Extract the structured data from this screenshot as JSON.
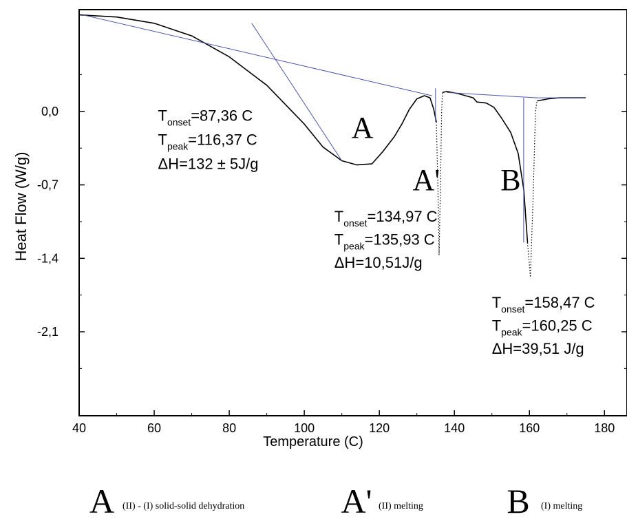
{
  "chart_data": {
    "type": "line",
    "xlabel": "Temperature (C)",
    "ylabel": "Heat Flow (W/g)",
    "xlim": [
      40,
      186
    ],
    "ylim": [
      -2.9,
      0.97
    ],
    "x_ticks": [
      40,
      60,
      80,
      100,
      120,
      140,
      160,
      180
    ],
    "x_tick_labels": [
      "40",
      "60",
      "80",
      "100",
      "120",
      "140",
      "160",
      "180"
    ],
    "y_ticks": [
      0.0,
      -0.7,
      -1.4,
      -2.1
    ],
    "y_tick_labels": [
      "0,0",
      "-0,7",
      "-1,4",
      "-2,1"
    ],
    "grid": false,
    "series": [
      {
        "style": "solid",
        "color": "#000000",
        "points": [
          [
            40,
            0.92
          ],
          [
            50,
            0.9
          ],
          [
            60,
            0.84
          ],
          [
            70,
            0.72
          ],
          [
            80,
            0.52
          ],
          [
            90,
            0.25
          ],
          [
            100,
            -0.12
          ],
          [
            105,
            -0.34
          ],
          [
            110,
            -0.47
          ],
          [
            114,
            -0.51
          ],
          [
            118,
            -0.5
          ],
          [
            121,
            -0.38
          ],
          [
            124,
            -0.24
          ],
          [
            126,
            -0.12
          ],
          [
            128,
            0.02
          ],
          [
            130,
            0.12
          ],
          [
            132,
            0.15
          ],
          [
            133.5,
            0.13
          ],
          [
            134.5,
            0.02
          ],
          [
            135.2,
            -0.1
          ]
        ]
      },
      {
        "style": "dotted",
        "color": "#000000",
        "points": [
          [
            135.2,
            -0.1
          ],
          [
            135.6,
            -0.7
          ],
          [
            135.93,
            -1.37
          ],
          [
            136.3,
            -0.7
          ],
          [
            136.6,
            0.0
          ],
          [
            136.8,
            0.18
          ]
        ]
      },
      {
        "style": "solid",
        "color": "#000000",
        "points": [
          [
            136.8,
            0.18
          ],
          [
            138,
            0.19
          ],
          [
            141,
            0.17
          ],
          [
            145,
            0.13
          ],
          [
            146,
            0.09
          ],
          [
            148.5,
            0.08
          ],
          [
            150.5,
            0.04
          ],
          [
            152.5,
            -0.06
          ],
          [
            155,
            -0.2
          ],
          [
            157,
            -0.4
          ],
          [
            158.5,
            -0.75
          ],
          [
            159.5,
            -1.25
          ]
        ]
      },
      {
        "style": "dotted",
        "color": "#000000",
        "points": [
          [
            159.5,
            -1.25
          ],
          [
            160.25,
            -1.58
          ],
          [
            161,
            -0.8
          ],
          [
            161.6,
            0.0
          ],
          [
            162,
            0.1
          ]
        ]
      },
      {
        "style": "solid",
        "color": "#000000",
        "points": [
          [
            162,
            0.1
          ],
          [
            165,
            0.12
          ],
          [
            168,
            0.13
          ],
          [
            172,
            0.13
          ],
          [
            175,
            0.13
          ]
        ]
      },
      {
        "style": "solid",
        "color": "#4a54a8",
        "points": [
          [
            41,
            0.92
          ],
          [
            134,
            0.15
          ]
        ]
      },
      {
        "style": "solid",
        "color": "#4a54a8",
        "points": [
          [
            86,
            0.84
          ],
          [
            110,
            -0.47
          ]
        ]
      },
      {
        "style": "solid",
        "color": "#4a54a8",
        "points": [
          [
            134.97,
            0.22
          ],
          [
            134.97,
            -0.1
          ]
        ]
      },
      {
        "style": "solid",
        "color": "#4a54a8",
        "points": [
          [
            138,
            0.18
          ],
          [
            162,
            0.13
          ]
        ]
      },
      {
        "style": "solid",
        "color": "#4a54a8",
        "points": [
          [
            158.47,
            0.13
          ],
          [
            158.47,
            -1.25
          ]
        ]
      },
      {
        "style": "solid",
        "color": "#4a54a8",
        "points": [
          [
            161.5,
            0.13
          ],
          [
            175,
            0.13
          ]
        ]
      }
    ],
    "annotations": [
      {
        "x": 61,
        "y": -0.09,
        "main": "T",
        "sub": "onset",
        "rest": "=87,36 C"
      },
      {
        "x": 61,
        "y": -0.32,
        "main": "T",
        "sub": "peak",
        "rest": "=116,37 C"
      },
      {
        "x": 61,
        "y": -0.55,
        "main": "ΔH=132 ± 5J/g",
        "sub": "",
        "rest": ""
      },
      {
        "x": 108,
        "y": -1.05,
        "main": "T",
        "sub": "onset",
        "rest": "=134,97 C"
      },
      {
        "x": 108,
        "y": -1.27,
        "main": "T",
        "sub": "peak",
        "rest": "=135,93 C"
      },
      {
        "x": 108,
        "y": -1.49,
        "main": "ΔH=10,51J/g",
        "sub": "",
        "rest": ""
      },
      {
        "x": 150,
        "y": -1.87,
        "main": "T",
        "sub": "onset",
        "rest": "=158,47 C"
      },
      {
        "x": 150,
        "y": -2.09,
        "main": "T",
        "sub": "peak",
        "rest": "=160,25 C"
      },
      {
        "x": 150,
        "y": -2.31,
        "main": "ΔH=39,51 J/g",
        "sub": "",
        "rest": ""
      }
    ],
    "peak_labels": [
      {
        "x": 115.5,
        "y": -0.25,
        "label": "A"
      },
      {
        "x": 132.5,
        "y": -0.75,
        "label": "A'"
      },
      {
        "x": 155,
        "y": -0.75,
        "label": "B"
      }
    ]
  },
  "legend": [
    {
      "letter": "A",
      "text": "(II) - (I) solid-solid dehydration"
    },
    {
      "letter": "A'",
      "text": "(II) melting"
    },
    {
      "letter": "B",
      "text": "(I) melting"
    }
  ]
}
